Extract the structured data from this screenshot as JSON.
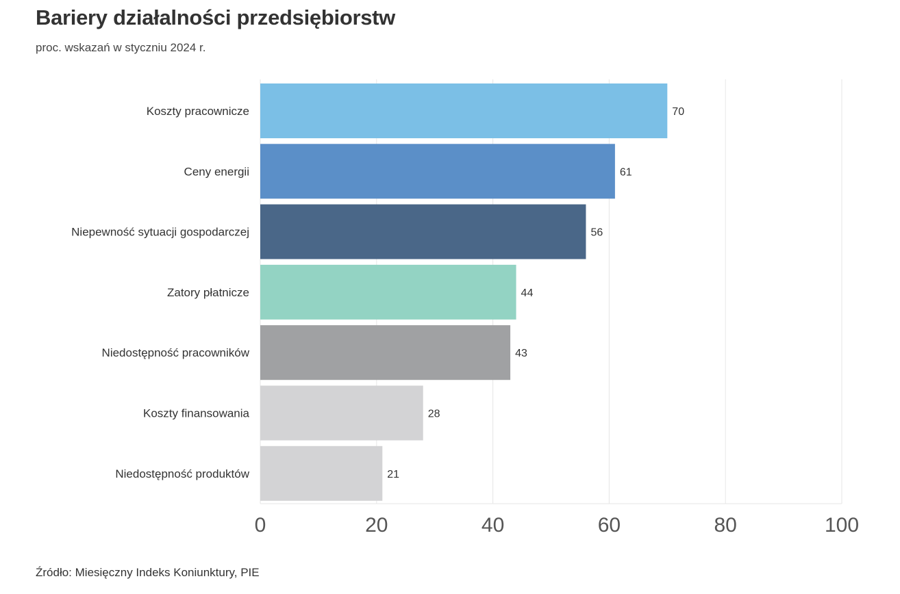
{
  "title": "Bariery działalności przedsiębiorstw",
  "subtitle": "proc. wskazań w styczniu 2024 r.",
  "source": "Źródło: Miesięczny Indeks Koniunktury, PIE",
  "chart_data": {
    "type": "bar",
    "orientation": "horizontal",
    "title": "Bariery działalności przedsiębiorstw",
    "subtitle": "proc. wskazań w styczniu 2024 r.",
    "categories": [
      "Koszty pracownicze",
      "Ceny energii",
      "Niepewność sytuacji gospodarczej",
      "Zatory płatnicze",
      "Niedostępność pracowników",
      "Koszty finansowania",
      "Niedostępność produktów"
    ],
    "values": [
      70,
      61,
      56,
      44,
      43,
      28,
      21
    ],
    "colors": [
      "#7bbfe6",
      "#5b8fc8",
      "#4a6788",
      "#93d3c3",
      "#a0a1a3",
      "#d3d3d5",
      "#d3d3d5"
    ],
    "xlim": [
      0,
      100
    ],
    "xticks": [
      0,
      20,
      40,
      60,
      80,
      100
    ],
    "grid": true,
    "data_labels": true,
    "legend": "none"
  }
}
